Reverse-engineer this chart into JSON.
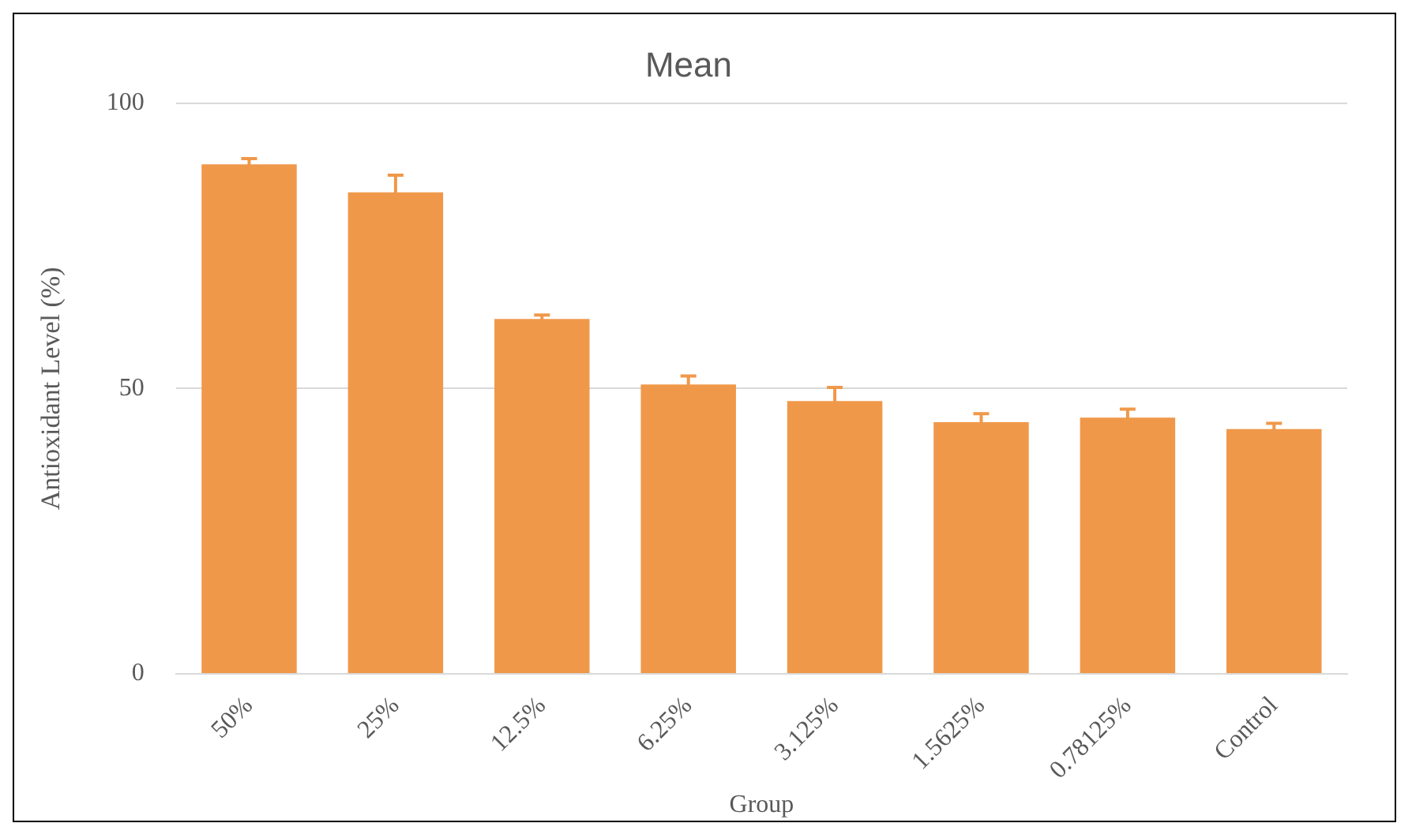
{
  "chart_data": {
    "type": "bar",
    "title": "Mean",
    "xlabel": "Group",
    "ylabel": "Antioxidant Level (%)",
    "categories": [
      "50%",
      "25%",
      "12.5%",
      "6.25%",
      "3.125%",
      "1.5625%",
      "0.78125%",
      "Control"
    ],
    "values": [
      89.3,
      84.4,
      62.2,
      50.7,
      47.8,
      44.1,
      44.9,
      42.9
    ],
    "errors": [
      1,
      3,
      0.7,
      1.5,
      2.4,
      1.5,
      1.5,
      1
    ],
    "color": "#f0984a",
    "ylim": [
      0,
      100
    ],
    "yticks": [
      0,
      50,
      100
    ],
    "grid": "y"
  }
}
